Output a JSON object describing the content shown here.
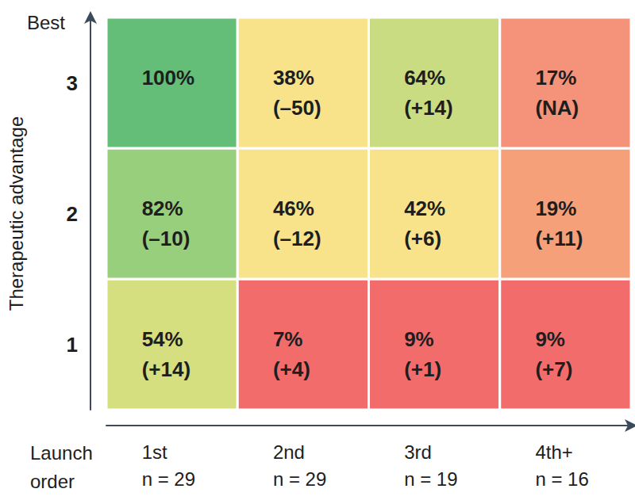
{
  "chart_data": {
    "type": "heatmap",
    "x_label": "Launch order",
    "y_label": "Therapeutic advantage",
    "y_top_label": "Best",
    "categories": [
      "1st",
      "2nd",
      "3rd",
      "4th+"
    ],
    "n_labels": [
      "n = 29",
      "n = 29",
      "n = 19",
      "n = 16"
    ],
    "y_categories": [
      "1",
      "2",
      "3"
    ],
    "values": [
      [
        54,
        7,
        9,
        9
      ],
      [
        82,
        46,
        42,
        19
      ],
      [
        100,
        38,
        64,
        17
      ]
    ],
    "value_labels": [
      [
        "54%",
        "7%",
        "9%",
        "9%"
      ],
      [
        "82%",
        "46%",
        "42%",
        "19%"
      ],
      [
        "100%",
        "38%",
        "64%",
        "17%"
      ]
    ],
    "changes": [
      [
        14,
        4,
        1,
        7
      ],
      [
        -10,
        -12,
        6,
        11
      ],
      [
        null,
        -50,
        14,
        null
      ]
    ],
    "change_labels": [
      [
        "(+14)",
        "(+4)",
        "(+1)",
        "(+7)"
      ],
      [
        "(–10)",
        "(–12)",
        "(+6)",
        "(+11)"
      ],
      [
        null,
        "(–50)",
        "(+14)",
        "(NA)"
      ]
    ],
    "colors": [
      [
        "#d6df7f",
        "#f26c6c",
        "#f26c6c",
        "#f26c6c"
      ],
      [
        "#97cf7c",
        "#f8e38a",
        "#f8e38a",
        "#f6a07a"
      ],
      [
        "#64be78",
        "#f8e38a",
        "#c9dc82",
        "#f4937a"
      ]
    ],
    "data_labels": true,
    "grid": false
  }
}
